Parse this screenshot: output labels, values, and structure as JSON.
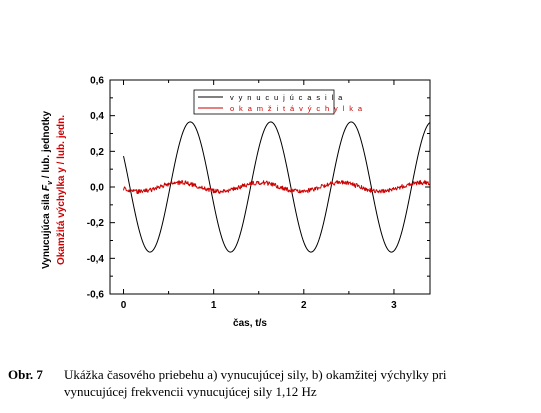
{
  "chart_data": {
    "type": "line",
    "xlabel": "čas, t/s",
    "ylabel_force": "Vynucujúca sila",
    "ylabel_force_symbol": "F",
    "ylabel_force_sub": "v",
    "ylabel_force_unit": " / lub. jednotky",
    "ylabel_disp": "Okamžitá výchylka",
    "ylabel_disp_unit": " y / lub. jedn.",
    "xlim": [
      -0.15,
      3.4
    ],
    "ylim": [
      -0.6,
      0.6
    ],
    "x_ticks": [
      0,
      1,
      2,
      3
    ],
    "y_ticks": [
      0.6,
      0.4,
      0.2,
      0.0,
      -0.2,
      -0.4,
      -0.6
    ],
    "x_tick_labels": [
      "0",
      "1",
      "2",
      "3"
    ],
    "y_tick_labels": [
      "0,6",
      "0,4",
      "0,2",
      "0,0",
      "-0,2",
      "-0,4",
      "-0,6"
    ],
    "grid": false,
    "legend_position": "top-center",
    "series": [
      {
        "name": "v y n u c u j ú c a   s i l a",
        "color": "#000000",
        "frequency_hz": 1.12,
        "amplitude": 0.365,
        "x": [
          0.0,
          0.25,
          0.74,
          1.2,
          1.64,
          2.09,
          2.54,
          2.99,
          3.4
        ],
        "y": [
          0.11,
          -0.37,
          0.35,
          -0.37,
          0.35,
          -0.37,
          0.35,
          -0.37,
          0.35
        ]
      },
      {
        "name": "o k a m ž i t á   v ý c h y l k a",
        "color": "#cc0000",
        "frequency_hz": 1.12,
        "amplitude": 0.025,
        "x": [
          0.0,
          0.25,
          0.62,
          1.1,
          1.55,
          2.0,
          2.45,
          2.9,
          3.4
        ],
        "y": [
          0.0,
          -0.03,
          0.02,
          -0.02,
          0.03,
          -0.02,
          0.02,
          -0.02,
          0.01
        ]
      }
    ]
  },
  "caption": {
    "label": "Obr. 7",
    "line1": "Ukážka časového priebehu a) vynucujúcej sily, b) okamžitej výchylky pri",
    "line2": "vynucujúcej frekvencii  vynucujúcej  sily 1,12 Hz"
  }
}
